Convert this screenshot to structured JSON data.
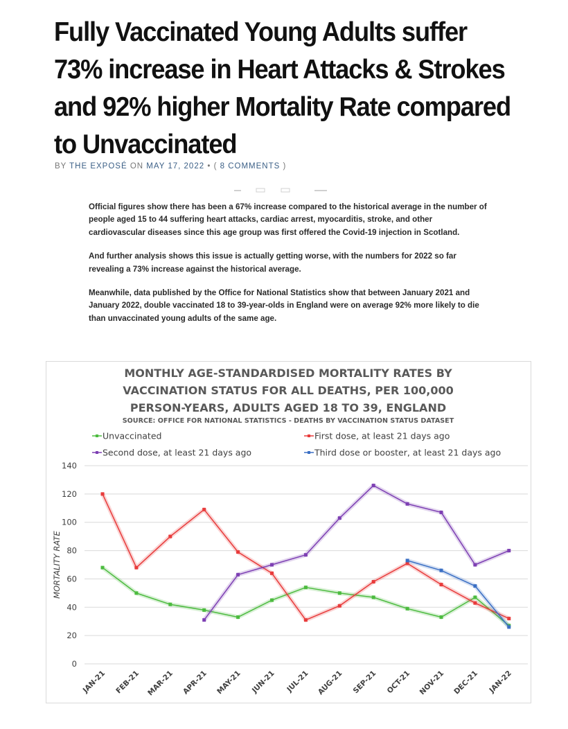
{
  "article": {
    "headline": "Fully Vaccinated Young Adults suffer 73% increase in Heart Attacks & Strokes and 92% higher Mortality Rate compared to Unvaccinated",
    "byline": {
      "by": "BY",
      "author": "THE EXPOSÉ",
      "on": "ON",
      "date": "MAY 17, 2022",
      "separator": "•",
      "comments_open": "(",
      "comments": "8 COMMENTS",
      "comments_close": ")"
    },
    "paragraphs": [
      "Official figures show there has been a 67% increase compared to the historical average in the number of people aged 15 to 44 suffering heart attacks, cardiac arrest, myocarditis, stroke, and other cardiovascular diseases since this age group was first offered the Covid-19 injection in Scotland.",
      "And further analysis shows this issue is actually getting worse, with the numbers for 2022 so far revealing a 73% increase against the historical average.",
      "Meanwhile, data published by the Office for National Statistics show that between January 2021 and January 2022, double vaccinated 18 to 39-year-olds in England were on average 92% more likely to die than unvaccinated young adults of the same age."
    ]
  },
  "chart_data": {
    "type": "line",
    "title_lines": [
      "MONTHLY AGE-STANDARDISED MORTALITY RATES BY",
      "VACCINATION STATUS FOR ALL DEATHS, PER 100,000",
      "PERSON-YEARS, ADULTS AGED 18 TO 39, ENGLAND"
    ],
    "subtitle": "SOURCE: OFFICE FOR NATIONAL STATISTICS - DEATHS BY VACCINATION STATUS DATASET",
    "xlabel": "",
    "ylabel": "MORTALITY RATE",
    "ylim": [
      0,
      140
    ],
    "yticks": [
      0,
      20,
      40,
      60,
      80,
      100,
      120,
      140
    ],
    "grid": true,
    "legend_position": "top",
    "categories": [
      "JAN-21",
      "FEB-21",
      "MAR-21",
      "APR-21",
      "MAY-21",
      "JUN-21",
      "JUL-21",
      "AUG-21",
      "SEP-21",
      "OCT-21",
      "NOV-21",
      "DEC-21",
      "JAN-22"
    ],
    "series": [
      {
        "name": "Unvaccinated",
        "color": "#4cbb3f",
        "values": [
          68,
          50,
          42,
          38,
          33,
          45,
          54,
          50,
          47,
          39,
          33,
          47,
          27
        ]
      },
      {
        "name": "First dose, at least 21 days ago",
        "color": "#e83b3b",
        "values": [
          120,
          68,
          90,
          109,
          79,
          64,
          31,
          41,
          58,
          71,
          56,
          43,
          32
        ]
      },
      {
        "name": "Second dose, at least 21 days ago",
        "color": "#7d3fb3",
        "values": [
          null,
          null,
          null,
          31,
          63,
          70,
          77,
          103,
          126,
          113,
          107,
          70,
          80
        ]
      },
      {
        "name": "Third dose or booster, at least 21 days ago",
        "color": "#3a6fc4",
        "values": [
          null,
          null,
          null,
          null,
          null,
          null,
          null,
          null,
          null,
          73,
          66,
          55,
          26
        ]
      }
    ]
  }
}
